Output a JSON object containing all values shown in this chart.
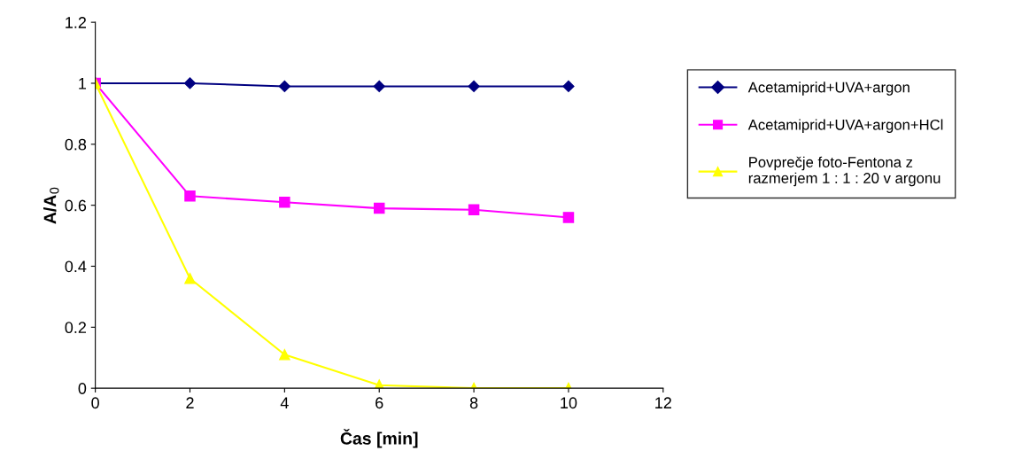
{
  "chart_data": {
    "type": "line",
    "xlabel": "Čas [min]",
    "ylabel": "A/A$_{0}$",
    "x": [
      0,
      2,
      4,
      6,
      8,
      10
    ],
    "series": [
      {
        "name": "Acetamiprid+UVA+argon",
        "color": "#000080",
        "marker": "diamond",
        "values": [
          1,
          1.0,
          0.99,
          0.99,
          0.99,
          0.99
        ]
      },
      {
        "name": "Acetamiprid+UVA+argon+HCl",
        "color": "#ff00ff",
        "marker": "square",
        "values": [
          1,
          0.63,
          0.61,
          0.59,
          0.585,
          0.56
        ]
      },
      {
        "name": "Povprečje foto-Fentona z\nrazmerjem 1 : 1 : 20 v argonu",
        "color": "#ffff00",
        "marker": "triangle",
        "values": [
          1,
          0.36,
          0.11,
          0.01,
          0,
          0
        ]
      }
    ],
    "xlim": [
      0,
      12
    ],
    "xticks": [
      0,
      2,
      4,
      6,
      8,
      10,
      12
    ],
    "ylim": [
      0,
      1.2
    ],
    "yticks": [
      0,
      0.2,
      0.4,
      0.6,
      0.8,
      1,
      1.2
    ],
    "grid": false,
    "legend": "right",
    "line_style": "solid"
  }
}
